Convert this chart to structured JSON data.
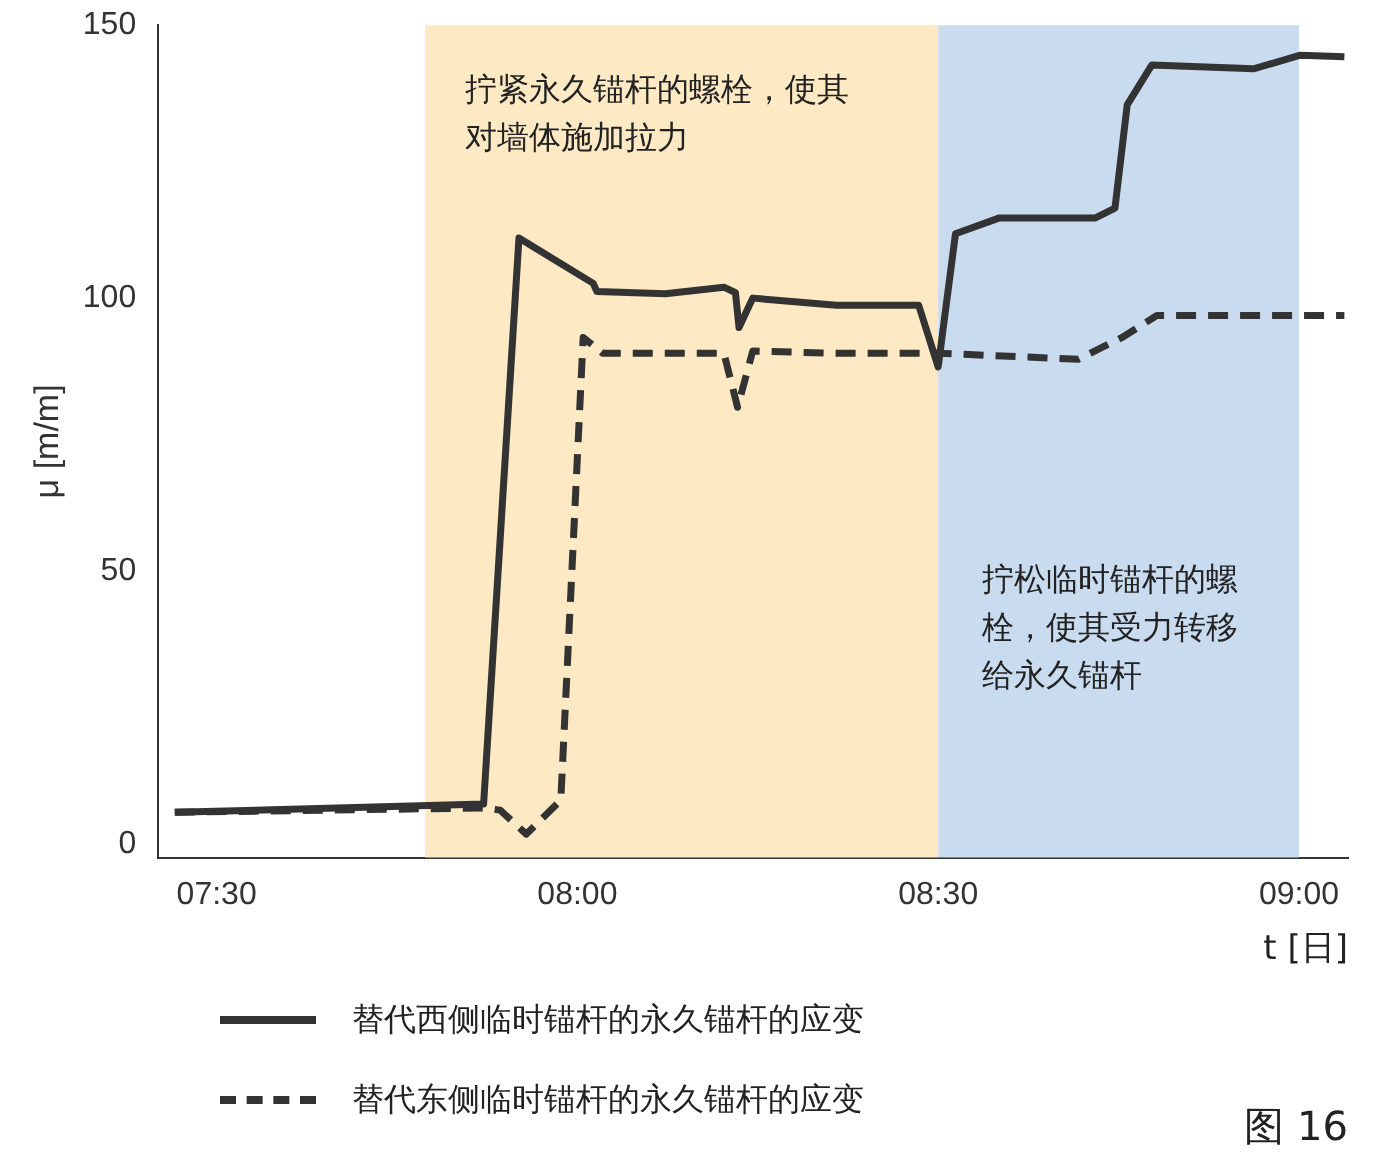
{
  "chart_data": {
    "type": "line",
    "xlabel": "t [日]",
    "ylabel": "μ [m/m]",
    "xlim": [
      7.419,
      9.068
    ],
    "ylim": [
      -2.5,
      150
    ],
    "xticks": [
      {
        "value": 7.5,
        "label": "07:30"
      },
      {
        "value": 8,
        "label": "08:00"
      },
      {
        "value": 8.5,
        "label": "08:30"
      },
      {
        "value": 9,
        "label": "09:00"
      }
    ],
    "yticks": [
      0,
      50,
      100,
      150
    ],
    "grid": false,
    "legend": "bottom",
    "marker": "none",
    "series": [
      {
        "name": "替代西侧临时锚杆的永久锚杆的应变",
        "color": "#333333",
        "line_style": "solid",
        "x": [
          7.442,
          7.87,
          7.919,
          8.022,
          8.027,
          8.122,
          8.203,
          8.219,
          8.224,
          8.243,
          8.359,
          8.473,
          8.5,
          8.524,
          8.585,
          8.718,
          8.745,
          8.762,
          8.796,
          8.937,
          9.002,
          9.063
        ],
        "values": [
          5.8,
          7.3,
          111,
          102.7,
          101.2,
          100.8,
          102,
          101,
          94.6,
          100,
          98.7,
          98.7,
          87.4,
          111.8,
          114.7,
          114.7,
          116.5,
          135.4,
          142.7,
          142,
          144.5,
          144.2
        ]
      },
      {
        "name": "替代东侧临时锚杆的永久锚杆的应变",
        "color": "#333333",
        "line_style": "dashed",
        "x": [
          7.442,
          7.87,
          7.893,
          7.929,
          7.977,
          8.008,
          8.035,
          8.122,
          8.203,
          8.222,
          8.243,
          8.359,
          8.5,
          8.694,
          8.755,
          8.803,
          9.063
        ],
        "values": [
          5.8,
          6.6,
          6.2,
          1.8,
          8,
          92.8,
          89.9,
          89.9,
          89.9,
          80,
          90.3,
          89.9,
          89.9,
          88.8,
          92.8,
          96.8,
          96.8
        ]
      }
    ],
    "bands": [
      {
        "axis": "x",
        "from": 7.789,
        "to": 8.5,
        "color": "#fde9c3",
        "label": "拧紧永久锚杆的螺栓，使其对墙体施加拉力"
      },
      {
        "axis": "x",
        "from": 8.5,
        "to": 9.0,
        "color": "#c9dbef",
        "label": "拧松临时锚杆的螺栓，使其受力转移给永久锚杆"
      }
    ],
    "annotations": [
      "图 16"
    ]
  }
}
